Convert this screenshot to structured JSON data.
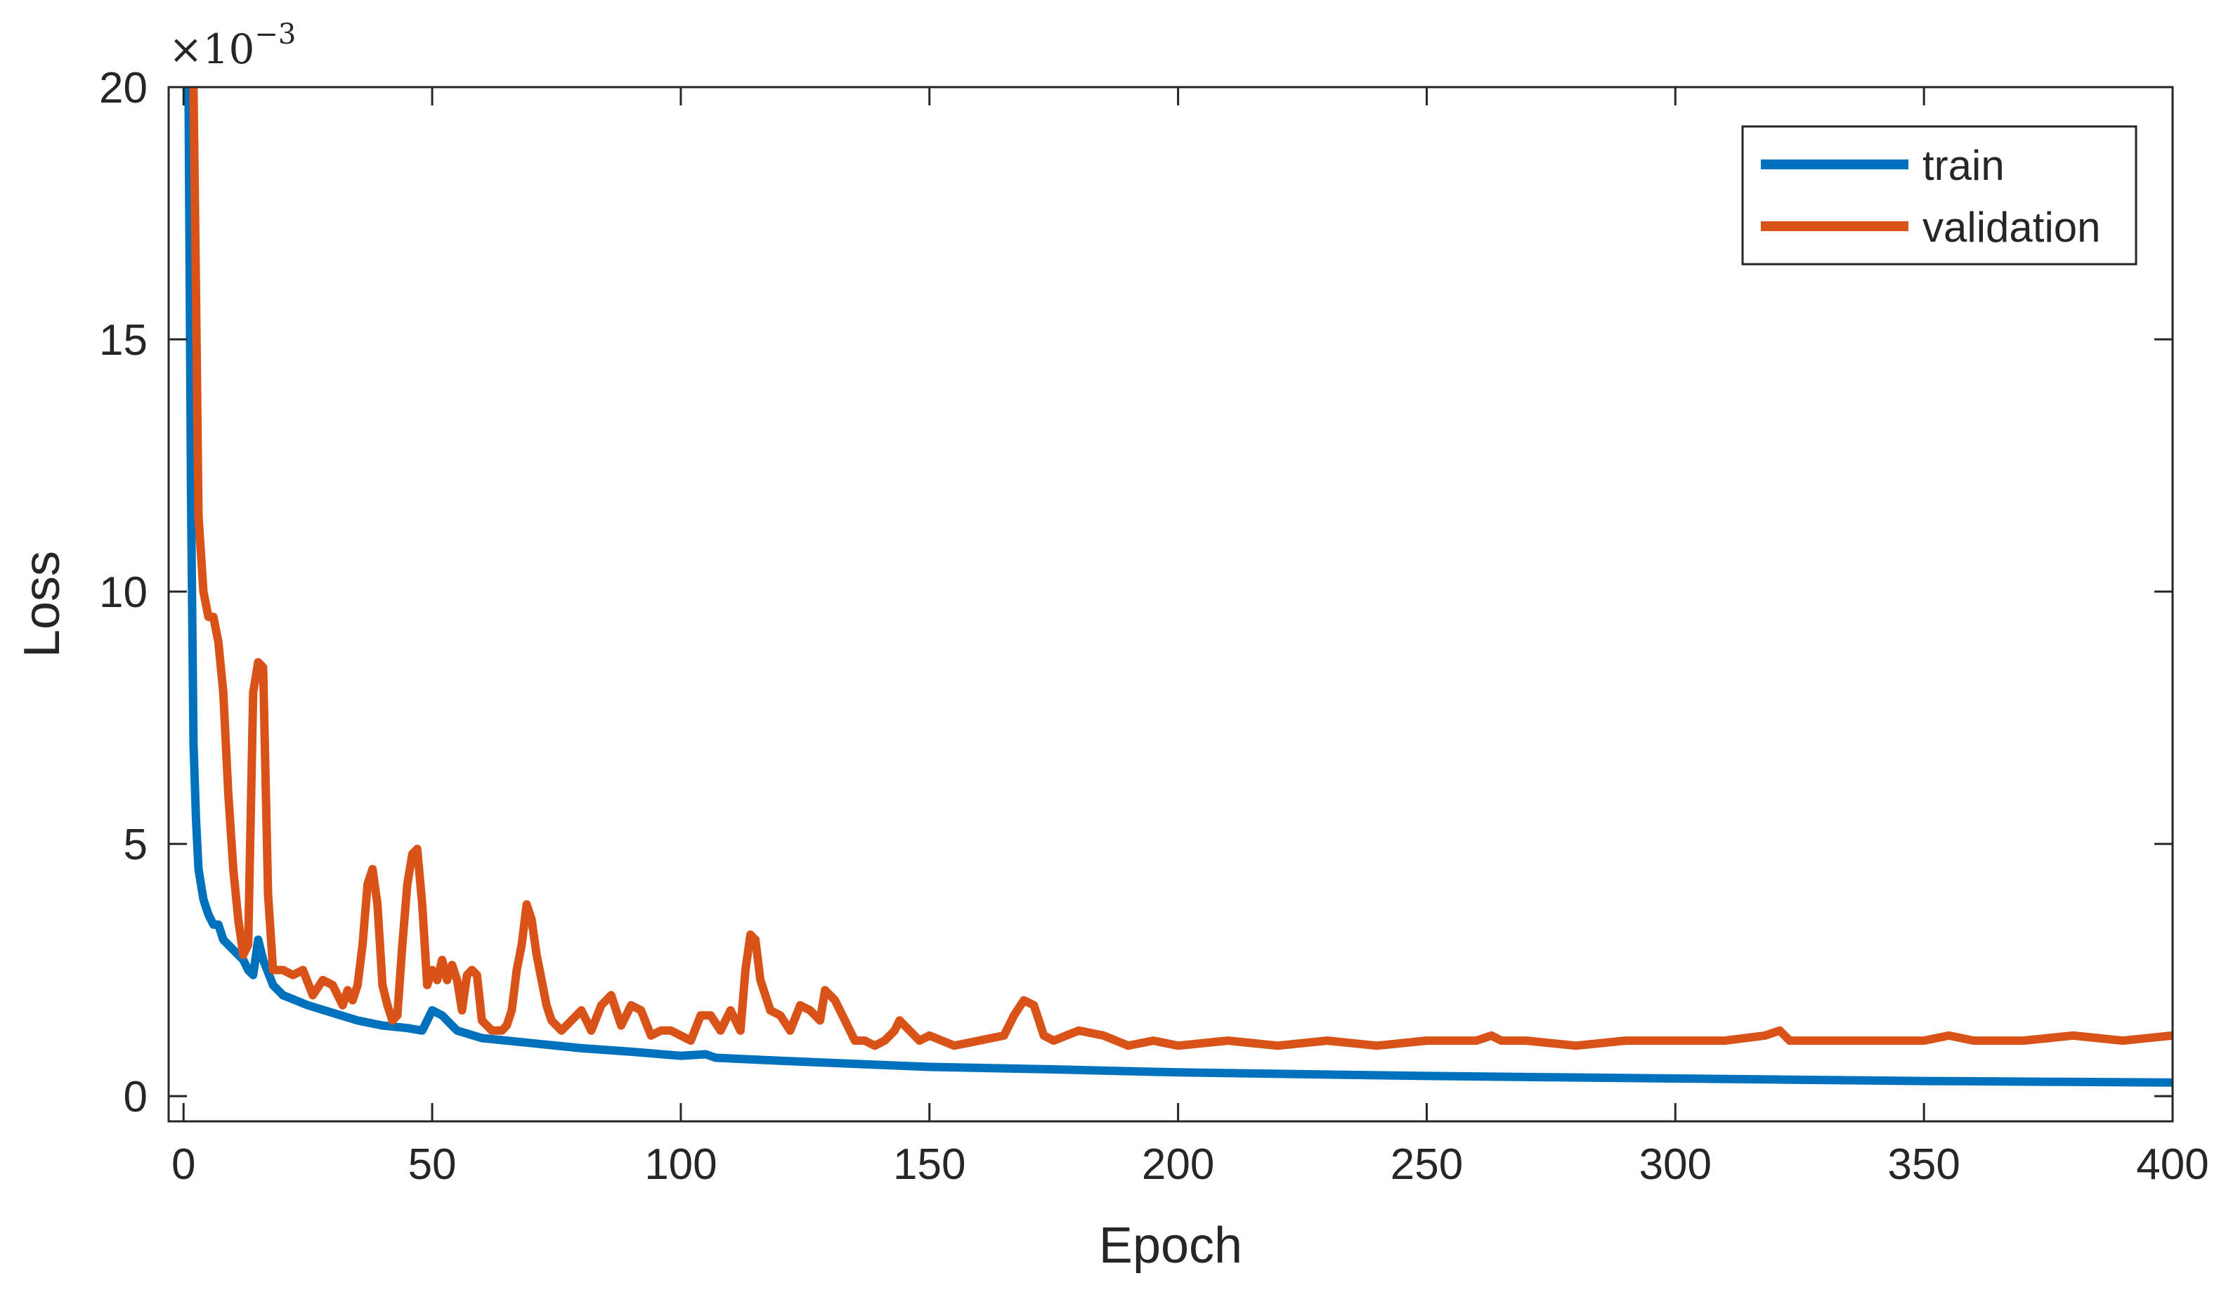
{
  "chart_data": {
    "type": "line",
    "xlabel": "Epoch",
    "ylabel": "Loss",
    "xlim": [
      -3,
      400
    ],
    "ylim": [
      -0.0005,
      0.02
    ],
    "x_ticks": [
      0,
      50,
      100,
      150,
      200,
      250,
      300,
      350,
      400
    ],
    "x_tick_labels": [
      "0",
      "50",
      "100",
      "150",
      "200",
      "250",
      "300",
      "350",
      "400"
    ],
    "y_ticks": [
      0,
      0.005,
      0.01,
      0.015,
      0.02
    ],
    "y_tick_labels": [
      "0",
      "5",
      "10",
      "15",
      "20"
    ],
    "y_exponent_label": "×10",
    "y_exponent_value": "−3",
    "grid": false,
    "legend_position": "top-right",
    "series": [
      {
        "name": "train",
        "color": "#0072BD",
        "points": [
          [
            1,
            0.02
          ],
          [
            1.5,
            0.012
          ],
          [
            2,
            0.007
          ],
          [
            2.5,
            0.0055
          ],
          [
            3,
            0.0045
          ],
          [
            4,
            0.0039
          ],
          [
            5,
            0.0036
          ],
          [
            6,
            0.0034
          ],
          [
            7,
            0.0034
          ],
          [
            8,
            0.0031
          ],
          [
            10,
            0.0029
          ],
          [
            12,
            0.0027
          ],
          [
            13,
            0.0025
          ],
          [
            14,
            0.0024
          ],
          [
            15,
            0.0031
          ],
          [
            16,
            0.0027
          ],
          [
            18,
            0.0022
          ],
          [
            20,
            0.002
          ],
          [
            25,
            0.0018
          ],
          [
            30,
            0.00165
          ],
          [
            35,
            0.0015
          ],
          [
            40,
            0.0014
          ],
          [
            45,
            0.00135
          ],
          [
            48,
            0.0013
          ],
          [
            50,
            0.0017
          ],
          [
            52,
            0.0016
          ],
          [
            55,
            0.0013
          ],
          [
            60,
            0.00115
          ],
          [
            70,
            0.00105
          ],
          [
            80,
            0.00095
          ],
          [
            90,
            0.00088
          ],
          [
            100,
            0.0008
          ],
          [
            105,
            0.00083
          ],
          [
            107,
            0.00076
          ],
          [
            120,
            0.0007
          ],
          [
            140,
            0.00062
          ],
          [
            150,
            0.00058
          ],
          [
            175,
            0.00053
          ],
          [
            200,
            0.00047
          ],
          [
            250,
            0.0004
          ],
          [
            300,
            0.00035
          ],
          [
            350,
            0.0003
          ],
          [
            400,
            0.00027
          ]
        ]
      },
      {
        "name": "validation",
        "color": "#D95319",
        "points": [
          [
            2,
            0.02
          ],
          [
            2.5,
            0.016
          ],
          [
            3,
            0.0115
          ],
          [
            4,
            0.01
          ],
          [
            5,
            0.0095
          ],
          [
            6,
            0.0095
          ],
          [
            7,
            0.009
          ],
          [
            8,
            0.008
          ],
          [
            9,
            0.006
          ],
          [
            10,
            0.0045
          ],
          [
            11,
            0.0035
          ],
          [
            12,
            0.0028
          ],
          [
            13,
            0.003
          ],
          [
            14,
            0.008
          ],
          [
            15,
            0.0086
          ],
          [
            16,
            0.0085
          ],
          [
            17,
            0.004
          ],
          [
            18,
            0.0025
          ],
          [
            20,
            0.0025
          ],
          [
            22,
            0.0024
          ],
          [
            24,
            0.0025
          ],
          [
            26,
            0.002
          ],
          [
            28,
            0.0023
          ],
          [
            30,
            0.0022
          ],
          [
            32,
            0.0018
          ],
          [
            33,
            0.0021
          ],
          [
            34,
            0.0019
          ],
          [
            35,
            0.0022
          ],
          [
            36,
            0.003
          ],
          [
            37,
            0.0042
          ],
          [
            38,
            0.0045
          ],
          [
            39,
            0.0038
          ],
          [
            40,
            0.0022
          ],
          [
            41,
            0.0018
          ],
          [
            42,
            0.0015
          ],
          [
            43,
            0.0016
          ],
          [
            44,
            0.003
          ],
          [
            45,
            0.0042
          ],
          [
            46,
            0.0048
          ],
          [
            47,
            0.0049
          ],
          [
            48,
            0.0038
          ],
          [
            49,
            0.0022
          ],
          [
            50,
            0.0025
          ],
          [
            51,
            0.0023
          ],
          [
            52,
            0.0027
          ],
          [
            53,
            0.0023
          ],
          [
            54,
            0.0026
          ],
          [
            55,
            0.0023
          ],
          [
            56,
            0.0017
          ],
          [
            57,
            0.0024
          ],
          [
            58,
            0.0025
          ],
          [
            59,
            0.0024
          ],
          [
            60,
            0.0015
          ],
          [
            62,
            0.0013
          ],
          [
            64,
            0.0013
          ],
          [
            65,
            0.0014
          ],
          [
            66,
            0.0017
          ],
          [
            67,
            0.0025
          ],
          [
            68,
            0.003
          ],
          [
            69,
            0.0038
          ],
          [
            70,
            0.0035
          ],
          [
            71,
            0.0028
          ],
          [
            72,
            0.0023
          ],
          [
            73,
            0.0018
          ],
          [
            74,
            0.0015
          ],
          [
            76,
            0.0013
          ],
          [
            78,
            0.0015
          ],
          [
            80,
            0.0017
          ],
          [
            82,
            0.0013
          ],
          [
            84,
            0.0018
          ],
          [
            86,
            0.002
          ],
          [
            88,
            0.0014
          ],
          [
            90,
            0.0018
          ],
          [
            92,
            0.0017
          ],
          [
            94,
            0.0012
          ],
          [
            96,
            0.0013
          ],
          [
            98,
            0.0013
          ],
          [
            100,
            0.0012
          ],
          [
            102,
            0.0011
          ],
          [
            104,
            0.0016
          ],
          [
            106,
            0.0016
          ],
          [
            108,
            0.0013
          ],
          [
            110,
            0.0017
          ],
          [
            112,
            0.0013
          ],
          [
            113,
            0.0025
          ],
          [
            114,
            0.0032
          ],
          [
            115,
            0.0031
          ],
          [
            116,
            0.0023
          ],
          [
            118,
            0.0017
          ],
          [
            120,
            0.0016
          ],
          [
            122,
            0.0013
          ],
          [
            124,
            0.0018
          ],
          [
            126,
            0.0017
          ],
          [
            128,
            0.0015
          ],
          [
            129,
            0.0021
          ],
          [
            131,
            0.0019
          ],
          [
            133,
            0.0015
          ],
          [
            135,
            0.0011
          ],
          [
            137,
            0.0011
          ],
          [
            139,
            0.001
          ],
          [
            141,
            0.0011
          ],
          [
            143,
            0.0013
          ],
          [
            144,
            0.0015
          ],
          [
            146,
            0.0013
          ],
          [
            148,
            0.0011
          ],
          [
            150,
            0.0012
          ],
          [
            155,
            0.001
          ],
          [
            160,
            0.0011
          ],
          [
            165,
            0.0012
          ],
          [
            167,
            0.0016
          ],
          [
            169,
            0.0019
          ],
          [
            171,
            0.0018
          ],
          [
            173,
            0.0012
          ],
          [
            175,
            0.0011
          ],
          [
            180,
            0.0013
          ],
          [
            185,
            0.0012
          ],
          [
            190,
            0.001
          ],
          [
            195,
            0.0011
          ],
          [
            200,
            0.001
          ],
          [
            210,
            0.0011
          ],
          [
            220,
            0.001
          ],
          [
            230,
            0.0011
          ],
          [
            240,
            0.001
          ],
          [
            250,
            0.0011
          ],
          [
            260,
            0.0011
          ],
          [
            263,
            0.0012
          ],
          [
            265,
            0.0011
          ],
          [
            270,
            0.0011
          ],
          [
            280,
            0.001
          ],
          [
            290,
            0.0011
          ],
          [
            300,
            0.0011
          ],
          [
            310,
            0.0011
          ],
          [
            318,
            0.0012
          ],
          [
            321,
            0.0013
          ],
          [
            323,
            0.0011
          ],
          [
            330,
            0.0011
          ],
          [
            340,
            0.0011
          ],
          [
            350,
            0.0011
          ],
          [
            355,
            0.0012
          ],
          [
            360,
            0.0011
          ],
          [
            370,
            0.0011
          ],
          [
            380,
            0.0012
          ],
          [
            390,
            0.0011
          ],
          [
            400,
            0.0012
          ]
        ]
      }
    ]
  }
}
